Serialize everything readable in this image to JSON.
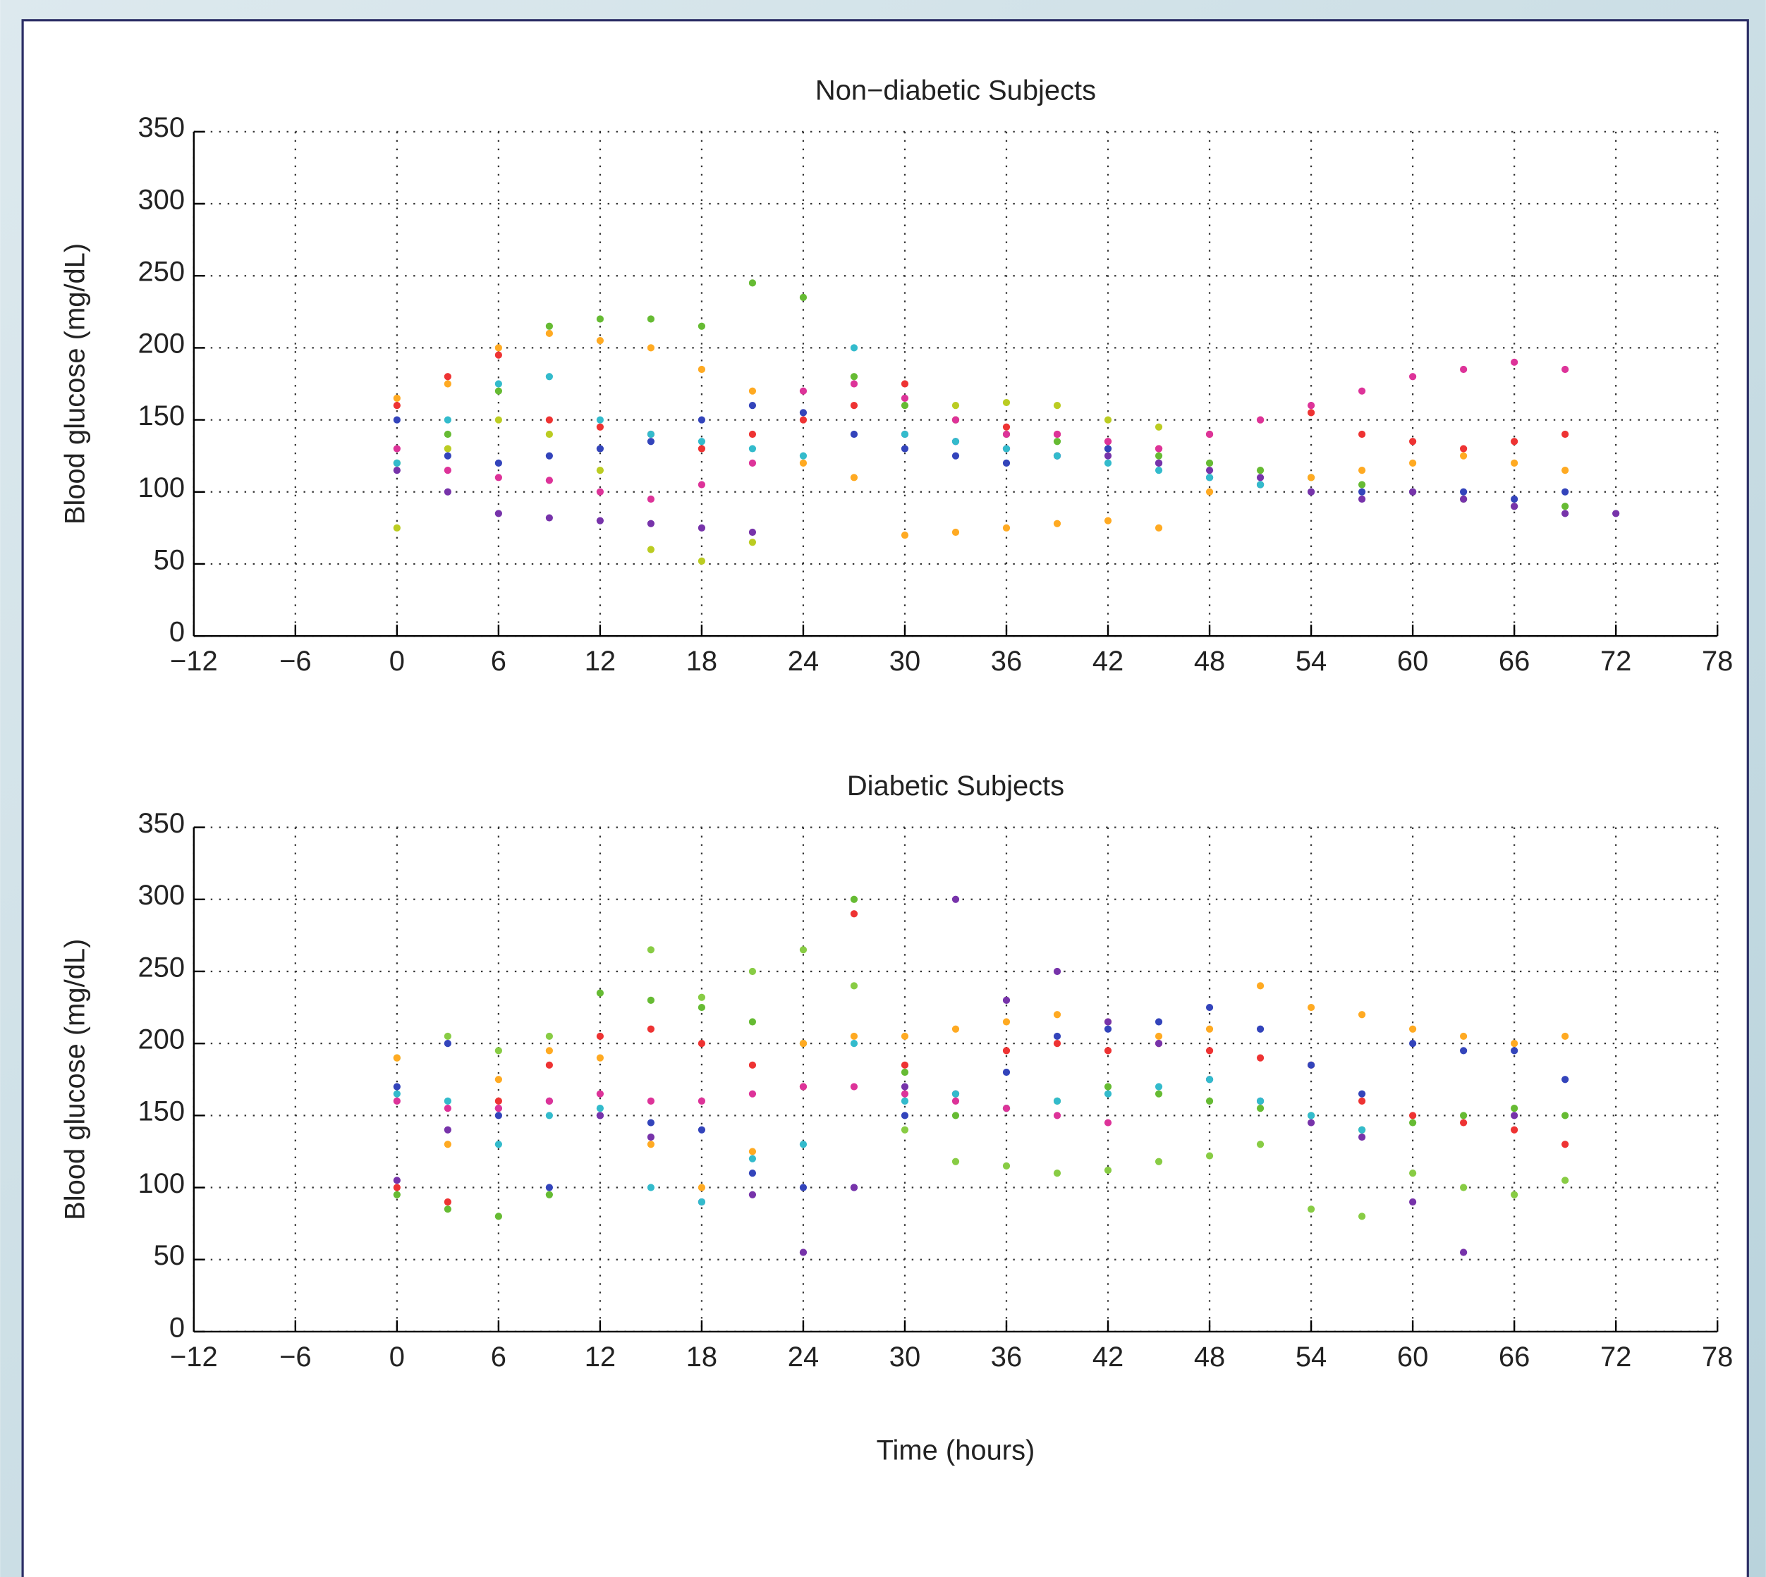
{
  "chart_data": [
    {
      "type": "scatter",
      "title": "Non−diabetic Subjects",
      "ylabel": "Blood glucose (mg/dL)",
      "grid": true,
      "x": [
        0,
        3,
        6,
        9,
        12,
        15,
        18,
        21,
        24,
        27,
        30,
        33,
        36,
        39,
        42,
        45,
        48,
        51,
        54,
        57,
        60,
        63,
        66,
        69,
        72
      ],
      "xlim": [
        -12,
        78
      ],
      "xticks": [
        {
          "value": -12,
          "label": "−12"
        },
        {
          "value": -6,
          "label": "−6"
        },
        0,
        6,
        12,
        18,
        24,
        30,
        36,
        42,
        48,
        54,
        60,
        66,
        72,
        78
      ],
      "ylim": [
        0,
        350
      ],
      "yticks": [
        0,
        50,
        100,
        150,
        200,
        250,
        300,
        350
      ],
      "series": [
        {
          "color": "#66bb33",
          "values": [
            120,
            140,
            170,
            215,
            220,
            220,
            215,
            245,
            235,
            180,
            160,
            150,
            140,
            135,
            130,
            125,
            120,
            115,
            110,
            105,
            100,
            95,
            90,
            90,
            null
          ]
        },
        {
          "color": "#ffaa22",
          "values": [
            165,
            175,
            200,
            210,
            205,
            200,
            185,
            170,
            120,
            110,
            70,
            72,
            75,
            78,
            80,
            75,
            100,
            105,
            110,
            115,
            120,
            125,
            120,
            115,
            null
          ]
        },
        {
          "color": "#ee3333",
          "values": [
            160,
            180,
            195,
            150,
            145,
            140,
            130,
            140,
            150,
            160,
            175,
            150,
            145,
            140,
            135,
            130,
            140,
            150,
            155,
            140,
            135,
            130,
            135,
            140,
            null
          ]
        },
        {
          "color": "#3344bb",
          "values": [
            150,
            125,
            120,
            125,
            130,
            135,
            150,
            160,
            155,
            140,
            130,
            125,
            120,
            125,
            130,
            120,
            110,
            105,
            100,
            100,
            100,
            100,
            95,
            100,
            null
          ]
        },
        {
          "color": "#7733aa",
          "values": [
            115,
            100,
            85,
            82,
            80,
            78,
            75,
            72,
            null,
            null,
            140,
            135,
            130,
            125,
            125,
            120,
            115,
            110,
            100,
            95,
            100,
            95,
            90,
            85,
            85
          ]
        },
        {
          "color": "#dd3399",
          "values": [
            130,
            115,
            110,
            108,
            100,
            95,
            105,
            120,
            170,
            175,
            165,
            150,
            140,
            140,
            135,
            130,
            140,
            150,
            160,
            170,
            180,
            185,
            190,
            185,
            null
          ]
        },
        {
          "color": "#bbcc22",
          "values": [
            75,
            130,
            150,
            140,
            115,
            60,
            52,
            65,
            null,
            null,
            null,
            160,
            162,
            160,
            150,
            145,
            null,
            null,
            null,
            null,
            null,
            null,
            null,
            null,
            null
          ]
        },
        {
          "color": "#33bbcc",
          "values": [
            120,
            150,
            175,
            180,
            150,
            140,
            135,
            130,
            125,
            200,
            140,
            135,
            130,
            125,
            120,
            115,
            110,
            105,
            null,
            null,
            null,
            null,
            null,
            null,
            null
          ]
        }
      ]
    },
    {
      "type": "scatter",
      "title": "Diabetic Subjects",
      "ylabel": "Blood glucose (mg/dL)",
      "xlabel": "Time (hours)",
      "grid": true,
      "x": [
        0,
        3,
        6,
        9,
        12,
        15,
        18,
        21,
        24,
        27,
        30,
        33,
        36,
        39,
        42,
        45,
        48,
        51,
        54,
        57,
        60,
        63,
        66,
        69,
        72
      ],
      "xlim": [
        -12,
        78
      ],
      "xticks": [
        {
          "value": -12,
          "label": "−12"
        },
        {
          "value": -6,
          "label": "−6"
        },
        0,
        6,
        12,
        18,
        24,
        30,
        36,
        42,
        48,
        54,
        60,
        66,
        72,
        78
      ],
      "ylim": [
        0,
        350
      ],
      "yticks": [
        0,
        50,
        100,
        150,
        200,
        250,
        300,
        350
      ],
      "series": [
        {
          "color": "#66bb33",
          "values": [
            95,
            85,
            80,
            95,
            235,
            230,
            225,
            215,
            200,
            300,
            180,
            150,
            155,
            160,
            170,
            165,
            160,
            155,
            150,
            140,
            145,
            150,
            155,
            150,
            null
          ]
        },
        {
          "color": "#88cc44",
          "values": [
            190,
            205,
            195,
            205,
            null,
            265,
            232,
            250,
            265,
            240,
            140,
            118,
            115,
            110,
            112,
            118,
            122,
            130,
            85,
            80,
            110,
            100,
            95,
            105,
            null
          ]
        },
        {
          "color": "#ffaa22",
          "values": [
            190,
            130,
            175,
            195,
            190,
            130,
            100,
            125,
            200,
            205,
            205,
            210,
            215,
            220,
            215,
            205,
            210,
            240,
            225,
            220,
            210,
            205,
            200,
            205,
            null
          ]
        },
        {
          "color": "#ee3333",
          "values": [
            100,
            90,
            160,
            185,
            205,
            210,
            200,
            185,
            170,
            290,
            185,
            165,
            195,
            200,
            195,
            200,
            195,
            190,
            185,
            160,
            150,
            145,
            140,
            130,
            null
          ]
        },
        {
          "color": "#3344bb",
          "values": [
            170,
            200,
            150,
            100,
            150,
            145,
            140,
            110,
            100,
            100,
            150,
            165,
            180,
            205,
            210,
            215,
            225,
            210,
            185,
            165,
            200,
            195,
            195,
            175,
            null
          ]
        },
        {
          "color": "#7733aa",
          "values": [
            105,
            140,
            155,
            160,
            150,
            135,
            90,
            95,
            55,
            100,
            170,
            300,
            230,
            250,
            215,
            200,
            175,
            160,
            145,
            135,
            90,
            55,
            150,
            null,
            null
          ]
        },
        {
          "color": "#33bbcc",
          "values": [
            165,
            160,
            130,
            150,
            155,
            100,
            90,
            120,
            130,
            200,
            160,
            165,
            155,
            160,
            165,
            170,
            175,
            160,
            150,
            140,
            null,
            null,
            null,
            null,
            null
          ]
        },
        {
          "color": "#dd3399",
          "values": [
            160,
            155,
            155,
            160,
            165,
            160,
            160,
            165,
            170,
            170,
            165,
            160,
            155,
            150,
            145,
            null,
            null,
            null,
            null,
            null,
            null,
            null,
            null,
            null,
            null
          ]
        }
      ]
    }
  ]
}
